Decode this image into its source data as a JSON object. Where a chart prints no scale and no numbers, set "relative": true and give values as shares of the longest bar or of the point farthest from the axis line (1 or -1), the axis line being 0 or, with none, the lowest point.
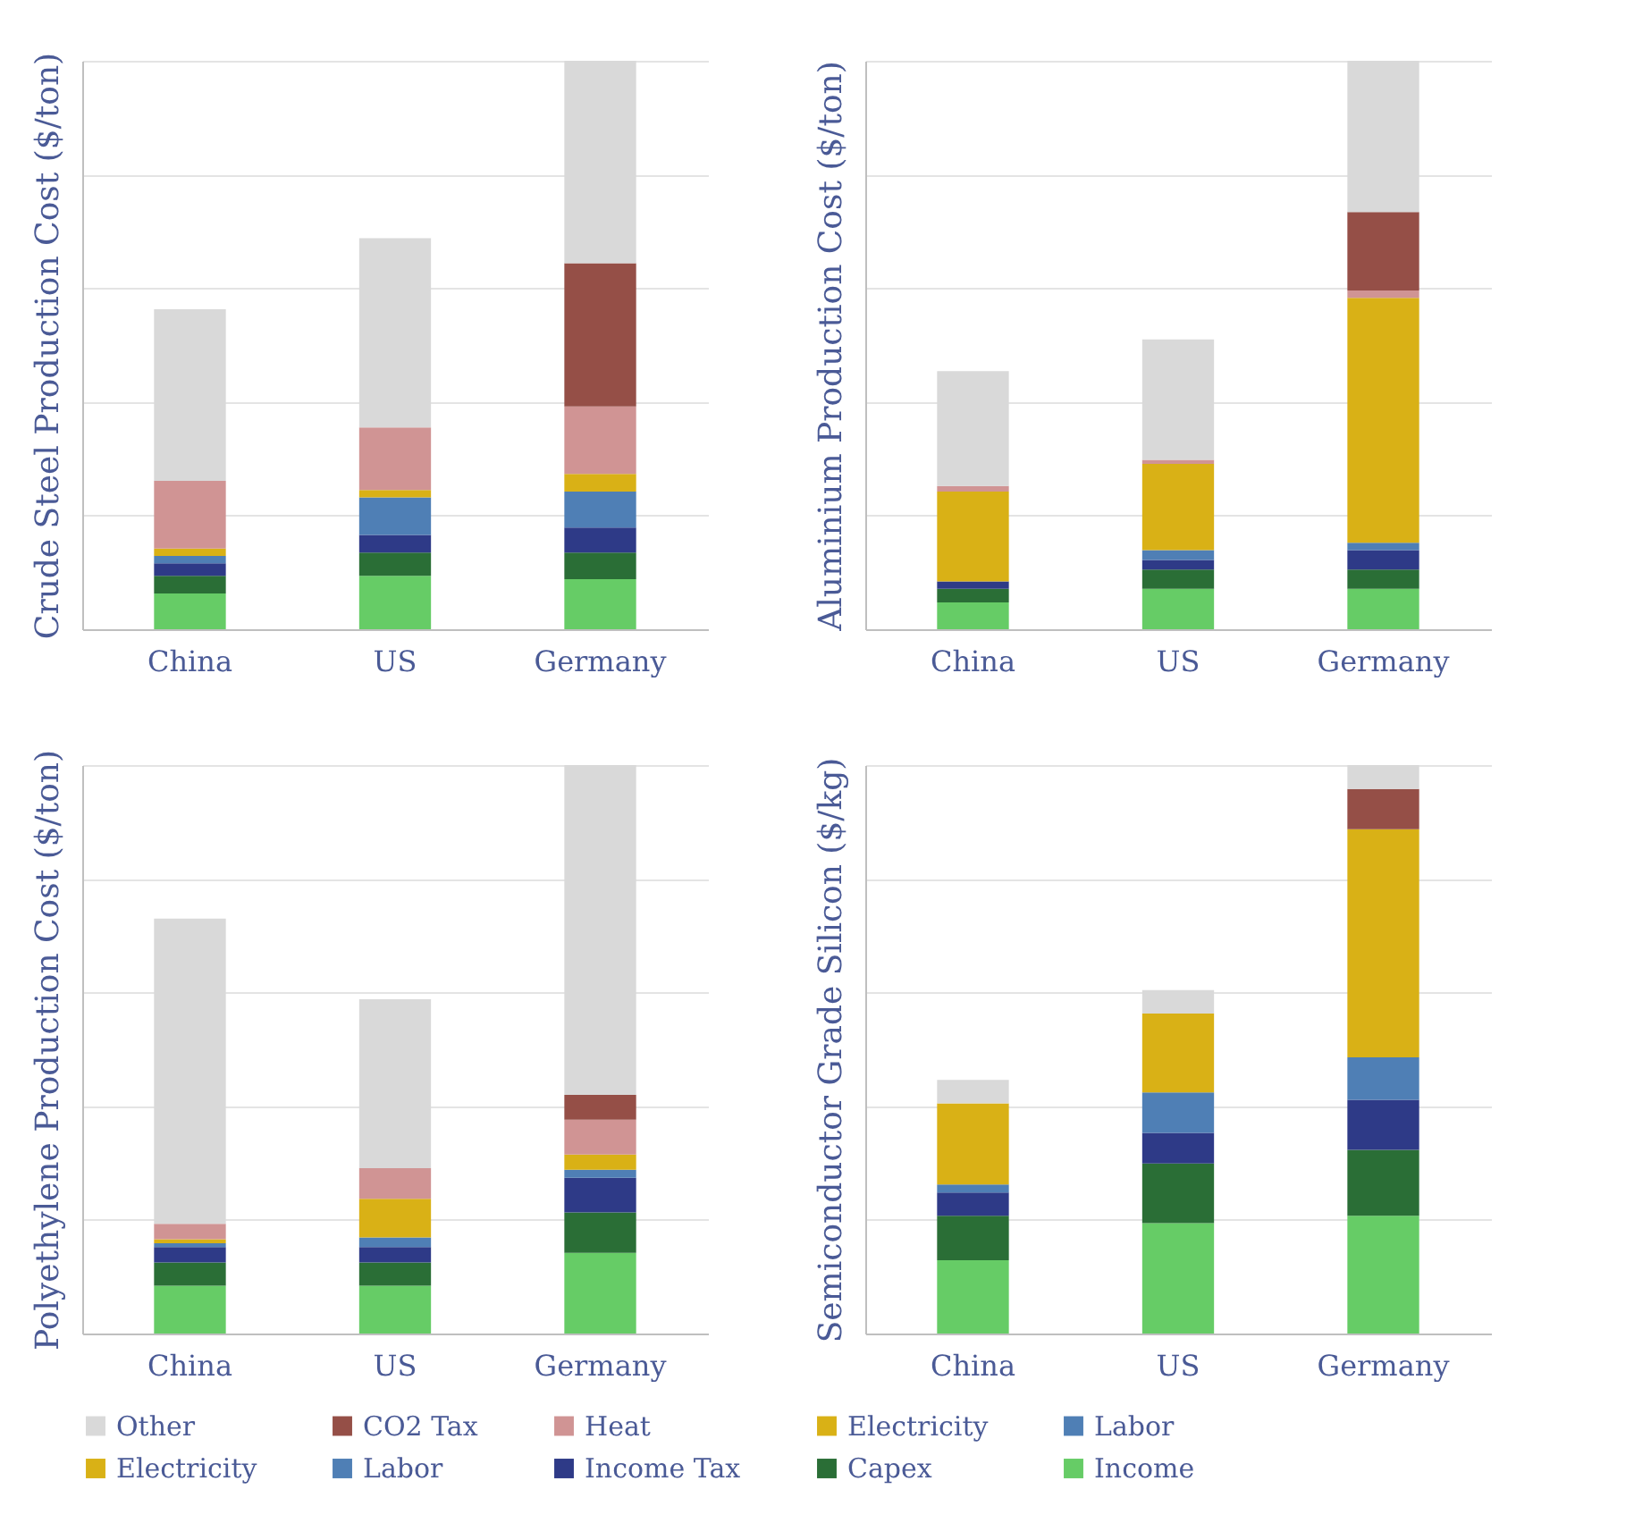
{
  "chart_data": [
    {
      "type": "bar",
      "stacked": true,
      "relative": true,
      "grid": "y",
      "legend": "bottom",
      "ylabel": "Crude Steel Production Cost ($/ton)",
      "categories": [
        "China",
        "US",
        "Germany"
      ],
      "series": [
        {
          "name": "Income",
          "color": "#66cc66",
          "values": [
            0.063,
            0.094,
            0.088
          ]
        },
        {
          "name": "Capex",
          "color": "#2a6e36",
          "values": [
            0.031,
            0.041,
            0.047
          ]
        },
        {
          "name": "Income Tax",
          "color": "#2e3a87",
          "values": [
            0.022,
            0.031,
            0.044
          ]
        },
        {
          "name": "Labor",
          "color": "#4f7fb5",
          "values": [
            0.013,
            0.066,
            0.063
          ]
        },
        {
          "name": "Electricity",
          "color": "#d9b116",
          "values": [
            0.013,
            0.013,
            0.031
          ]
        },
        {
          "name": "Labor",
          "color": "#4f7fb5",
          "values": [
            null,
            null,
            null
          ]
        },
        {
          "name": "Electricity",
          "color": "#d9b116",
          "values": [
            null,
            null,
            null
          ]
        },
        {
          "name": "Heat",
          "color": "#d09494",
          "values": [
            0.119,
            0.11,
            0.119
          ]
        },
        {
          "name": "CO2 Tax",
          "color": "#954f47",
          "values": [
            null,
            null,
            0.252
          ]
        },
        {
          "name": "Other",
          "color": "#d9d9d9",
          "values": [
            0.302,
            0.333,
            0.356
          ]
        }
      ]
    },
    {
      "type": "bar",
      "stacked": true,
      "relative": true,
      "grid": "y",
      "ylabel": "Aluminium Production Cost ($/ton)",
      "categories": [
        "China",
        "US",
        "Germany"
      ],
      "series": [
        {
          "color": "#66cc66",
          "values": [
            0.047,
            0.071,
            0.071
          ]
        },
        {
          "color": "#2a6e36",
          "values": [
            0.024,
            0.034,
            0.034
          ]
        },
        {
          "color": "#2e3a87",
          "values": [
            0.013,
            0.017,
            0.034
          ]
        },
        {
          "color": "#4f7fb5",
          "values": [
            null,
            0.017,
            0.013
          ]
        },
        {
          "color": "#d9b116",
          "values": [
            0.158,
            0.152,
            0.431
          ]
        },
        {
          "color": "#d09494",
          "values": [
            0.01,
            0.007,
            0.013
          ]
        },
        {
          "color": "#954f47",
          "values": [
            null,
            null,
            0.138
          ]
        },
        {
          "color": "#d9d9d9",
          "values": [
            0.202,
            0.212,
            0.266
          ]
        }
      ]
    },
    {
      "type": "bar",
      "stacked": true,
      "relative": true,
      "grid": "y",
      "ylabel": "Polyethylene Production Cost ($/ton)",
      "categories": [
        "China",
        "US",
        "Germany"
      ],
      "series": [
        {
          "color": "#66cc66",
          "values": [
            0.084,
            0.084,
            0.142
          ]
        },
        {
          "color": "#2a6e36",
          "values": [
            0.041,
            0.041,
            0.071
          ]
        },
        {
          "color": "#2e3a87",
          "values": [
            0.027,
            0.027,
            0.061
          ]
        },
        {
          "color": "#4f7fb5",
          "values": [
            0.007,
            0.017,
            0.014
          ]
        },
        {
          "color": "#d9b116",
          "values": [
            0.007,
            0.068,
            0.027
          ]
        },
        {
          "color": "#d09494",
          "values": [
            0.027,
            0.054,
            0.061
          ]
        },
        {
          "color": "#954f47",
          "values": [
            null,
            null,
            0.044
          ]
        },
        {
          "color": "#d9d9d9",
          "values": [
            0.537,
            0.297,
            0.58
          ]
        }
      ]
    },
    {
      "type": "bar",
      "stacked": true,
      "relative": true,
      "grid": "y",
      "ylabel": "Semiconductor Grade Silicon ($/kg)",
      "categories": [
        "China",
        "US",
        "Germany"
      ],
      "series": [
        {
          "color": "#66cc66",
          "values": [
            0.129,
            0.194,
            0.207
          ]
        },
        {
          "color": "#2a6e36",
          "values": [
            0.078,
            0.105,
            0.116
          ]
        },
        {
          "color": "#2e3a87",
          "values": [
            0.041,
            0.054,
            0.088
          ]
        },
        {
          "color": "#4f7fb5",
          "values": [
            0.014,
            0.071,
            0.075
          ]
        },
        {
          "color": "#d9b116",
          "values": [
            0.143,
            0.139,
            0.401
          ]
        },
        {
          "color": "#954f47",
          "values": [
            null,
            null,
            0.071
          ]
        },
        {
          "color": "#d9d9d9",
          "values": [
            0.041,
            0.041,
            0.042
          ]
        }
      ]
    }
  ]
}
